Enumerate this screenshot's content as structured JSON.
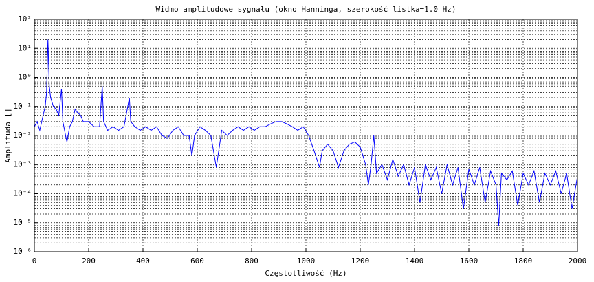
{
  "chart_data": {
    "type": "line",
    "title": "Widmo amplitudowe sygnału (okno Hanninga, szerokość listka=1.0 Hz)",
    "xlabel": "Częstotliwość (Hz)",
    "ylabel": "Amplituda []",
    "log_y": true,
    "grid": true,
    "xlim": [
      0,
      2000
    ],
    "xticks": [
      0,
      200,
      400,
      600,
      800,
      1000,
      1200,
      1400,
      1600,
      1800,
      2000
    ],
    "ylim": [
      1e-06,
      100
    ],
    "yticks": [
      {
        "value": 1e-06,
        "label": "10⁻⁶"
      },
      {
        "value": 1e-05,
        "label": "10⁻⁵"
      },
      {
        "value": 0.0001,
        "label": "10⁻⁴"
      },
      {
        "value": 0.001,
        "label": "10⁻³"
      },
      {
        "value": 0.01,
        "label": "10⁻²"
      },
      {
        "value": 0.1,
        "label": "10⁻¹"
      },
      {
        "value": 1,
        "label": "10⁰"
      },
      {
        "value": 10,
        "label": "10¹"
      },
      {
        "value": 100,
        "label": "10²"
      }
    ],
    "x": [
      0,
      10,
      20,
      30,
      40,
      45,
      50,
      55,
      60,
      70,
      80,
      90,
      100,
      105,
      115,
      120,
      130,
      140,
      150,
      160,
      170,
      180,
      200,
      220,
      240,
      250,
      255,
      270,
      290,
      310,
      330,
      350,
      355,
      370,
      390,
      410,
      430,
      450,
      470,
      490,
      510,
      530,
      550,
      570,
      580,
      590,
      610,
      630,
      650,
      670,
      690,
      710,
      730,
      750,
      770,
      790,
      810,
      830,
      850,
      870,
      890,
      910,
      930,
      950,
      970,
      990,
      1010,
      1030,
      1050,
      1060,
      1080,
      1100,
      1120,
      1140,
      1160,
      1180,
      1200,
      1220,
      1230,
      1240,
      1250,
      1260,
      1280,
      1300,
      1320,
      1340,
      1360,
      1380,
      1400,
      1420,
      1440,
      1460,
      1480,
      1500,
      1520,
      1540,
      1560,
      1580,
      1600,
      1620,
      1640,
      1660,
      1680,
      1700,
      1710,
      1720,
      1740,
      1760,
      1780,
      1800,
      1820,
      1840,
      1860,
      1880,
      1900,
      1920,
      1940,
      1960,
      1980,
      2000
    ],
    "series": [
      {
        "name": "Amplituda",
        "color": "#0000ff",
        "values": [
          0.02,
          0.03,
          0.015,
          0.04,
          0.1,
          0.3,
          20,
          0.5,
          0.2,
          0.1,
          0.08,
          0.05,
          0.4,
          0.03,
          0.01,
          0.006,
          0.02,
          0.03,
          0.08,
          0.06,
          0.05,
          0.03,
          0.03,
          0.02,
          0.02,
          0.5,
          0.03,
          0.015,
          0.02,
          0.015,
          0.02,
          0.2,
          0.03,
          0.02,
          0.015,
          0.02,
          0.015,
          0.02,
          0.01,
          0.008,
          0.015,
          0.02,
          0.01,
          0.01,
          0.002,
          0.01,
          0.02,
          0.015,
          0.01,
          0.0008,
          0.015,
          0.01,
          0.015,
          0.02,
          0.015,
          0.02,
          0.015,
          0.02,
          0.02,
          0.025,
          0.03,
          0.03,
          0.025,
          0.02,
          0.015,
          0.02,
          0.01,
          0.003,
          0.0008,
          0.003,
          0.005,
          0.003,
          0.0008,
          0.003,
          0.005,
          0.006,
          0.004,
          0.001,
          0.0002,
          0.001,
          0.01,
          0.0005,
          0.001,
          0.0003,
          0.0015,
          0.0004,
          0.001,
          0.0002,
          0.0008,
          5e-05,
          0.001,
          0.0003,
          0.0008,
          0.0001,
          0.001,
          0.0002,
          0.0008,
          3e-05,
          0.0007,
          0.0002,
          0.0008,
          5e-05,
          0.0006,
          0.0002,
          8e-06,
          0.0005,
          0.0003,
          0.0006,
          4e-05,
          0.0005,
          0.0002,
          0.0006,
          5e-05,
          0.0005,
          0.0002,
          0.0006,
          0.0001,
          0.0005,
          3e-05,
          0.0004
        ]
      }
    ]
  }
}
